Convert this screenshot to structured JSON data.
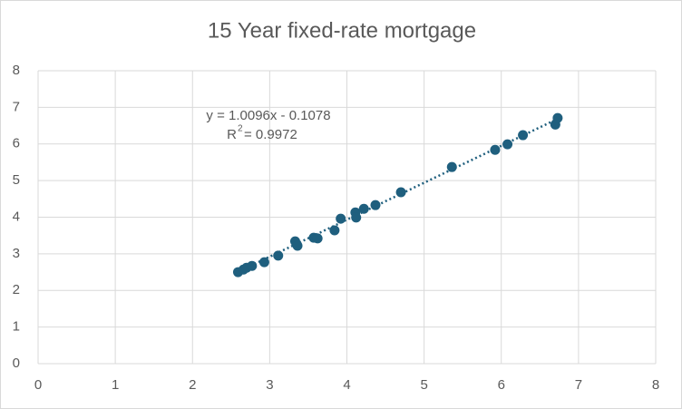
{
  "chart_data": {
    "type": "scatter",
    "title": "15 Year fixed-rate mortgage",
    "color": "#1f5f7e",
    "x": [
      2.59,
      2.66,
      2.7,
      2.77,
      2.93,
      3.11,
      3.33,
      3.36,
      3.57,
      3.62,
      3.84,
      3.92,
      4.11,
      4.12,
      4.22,
      4.37,
      4.7,
      5.36,
      5.92,
      6.08,
      6.28,
      6.7,
      6.73
    ],
    "values": [
      2.5,
      2.57,
      2.62,
      2.67,
      2.77,
      2.95,
      3.34,
      3.22,
      3.44,
      3.42,
      3.64,
      3.96,
      4.13,
      3.99,
      4.23,
      4.33,
      4.68,
      5.37,
      5.84,
      5.99,
      6.24,
      6.53,
      6.71
    ],
    "xlim": [
      0,
      8
    ],
    "xticks": [
      0,
      1,
      2,
      3,
      4,
      5,
      6,
      7,
      8
    ],
    "ylim": [
      0,
      8
    ],
    "yticks": [
      0,
      1,
      2,
      3,
      4,
      5,
      6,
      7,
      8
    ],
    "grid": true,
    "trendline": {
      "slope": 1.0096,
      "intercept": -0.1078,
      "style": "dotted",
      "equation": "y = 1.0096x - 0.1078",
      "r_squared_label": "R",
      "r_squared_exponent": "2",
      "r_squared_value": "= 0.9972"
    }
  }
}
